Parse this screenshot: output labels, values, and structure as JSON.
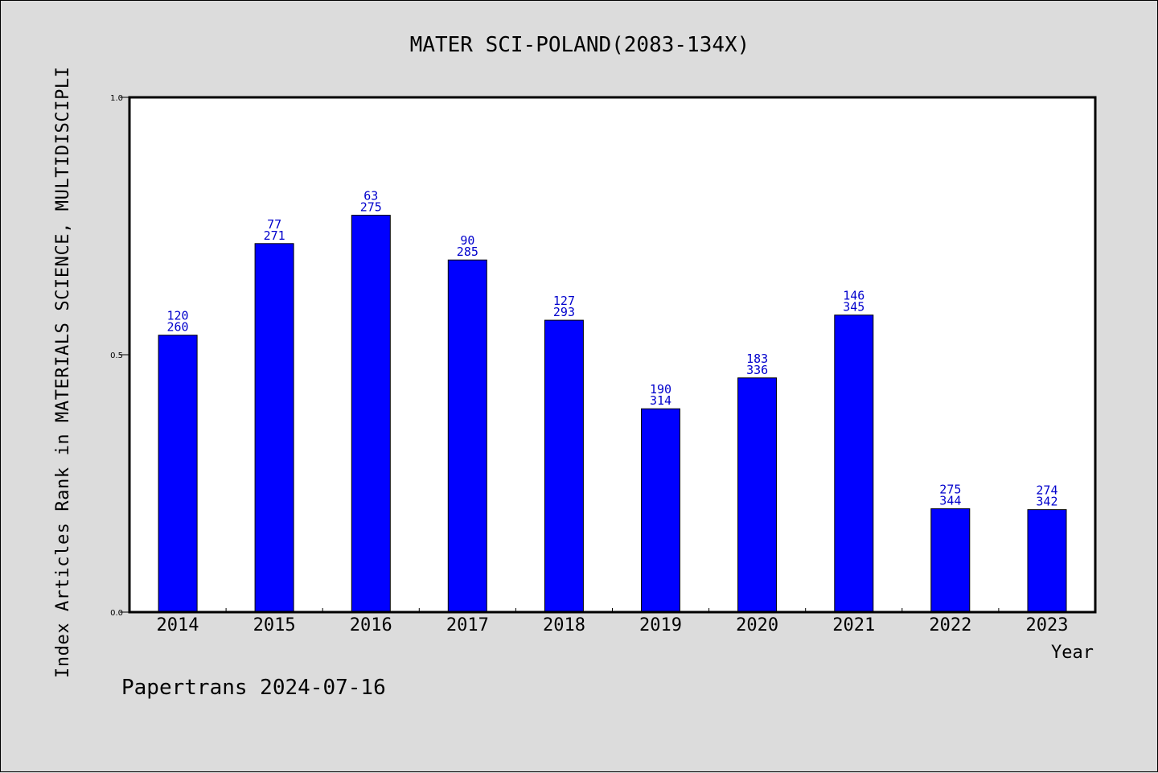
{
  "chart_data": {
    "type": "bar",
    "title": "MATER SCI-POLAND(2083-134X)",
    "xlabel": "Year",
    "ylabel": "Index Articles Rank in MATERIALS SCIENCE, MULTIDISCIPLI",
    "categories": [
      "2014",
      "2015",
      "2016",
      "2017",
      "2018",
      "2019",
      "2020",
      "2021",
      "2022",
      "2023"
    ],
    "values": [
      0.538,
      0.716,
      0.771,
      0.684,
      0.567,
      0.395,
      0.455,
      0.577,
      0.201,
      0.199
    ],
    "labels_top": [
      "120",
      "77",
      "63",
      "90",
      "127",
      "190",
      "183",
      "146",
      "275",
      "274"
    ],
    "labels_bottom": [
      "260",
      "271",
      "275",
      "285",
      "293",
      "314",
      "336",
      "345",
      "344",
      "342"
    ],
    "ylim": [
      0.0,
      1.0
    ],
    "yticks": [
      "0.0",
      "0.5",
      "1.0"
    ],
    "bar_color": "#0000ff",
    "label_color": "#0000cc",
    "grid": false
  },
  "footer": "Papertrans 2024-07-16"
}
